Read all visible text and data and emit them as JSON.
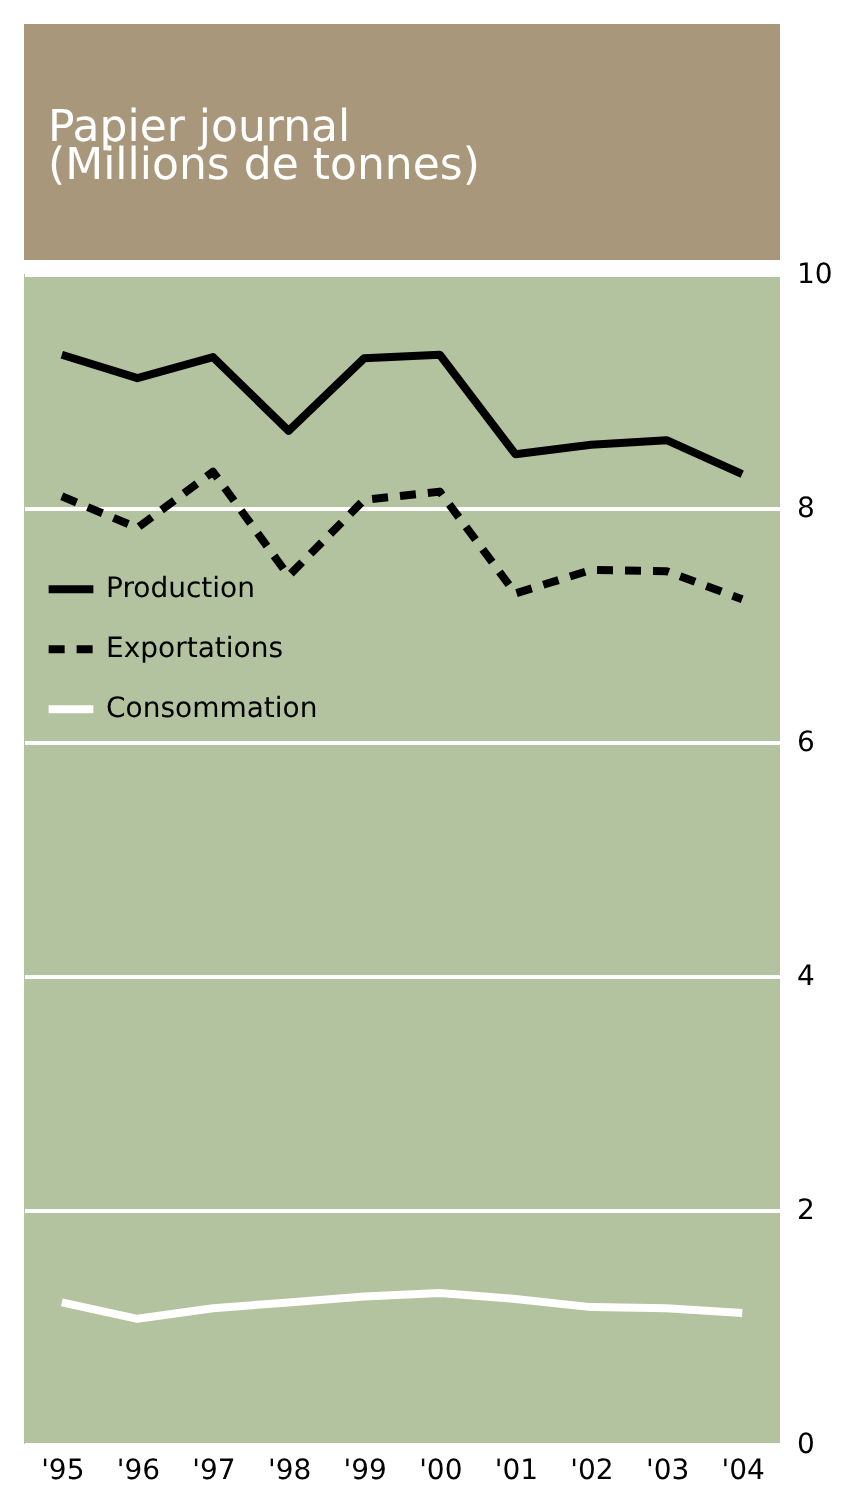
{
  "chart_data": {
    "type": "line",
    "title": "Papier journal",
    "subtitle": "(Millions de tonnes)",
    "categories": [
      "'95",
      "'96",
      "'97",
      "'98",
      "'99",
      "'00",
      "'01",
      "'02",
      "'03",
      "'04"
    ],
    "series": [
      {
        "name": "Production",
        "color": "#000000",
        "line_style": "solid",
        "values": [
          9.31,
          9.11,
          9.29,
          8.66,
          9.28,
          9.31,
          8.46,
          8.54,
          8.58,
          8.29
        ]
      },
      {
        "name": "Exportations",
        "color": "#000000",
        "line_style": "dashed",
        "values": [
          8.1,
          7.83,
          8.31,
          7.42,
          8.07,
          8.14,
          7.27,
          7.47,
          7.46,
          7.22
        ]
      },
      {
        "name": "Consommation",
        "color": "#ffffff",
        "line_style": "solid",
        "values": [
          1.21,
          1.07,
          1.16,
          1.21,
          1.26,
          1.29,
          1.24,
          1.17,
          1.16,
          1.12
        ]
      }
    ],
    "ylim": [
      0,
      10
    ],
    "yticks": [
      0,
      2,
      4,
      6,
      8,
      10
    ],
    "grid": "y",
    "legend": "left",
    "marker": "none"
  }
}
